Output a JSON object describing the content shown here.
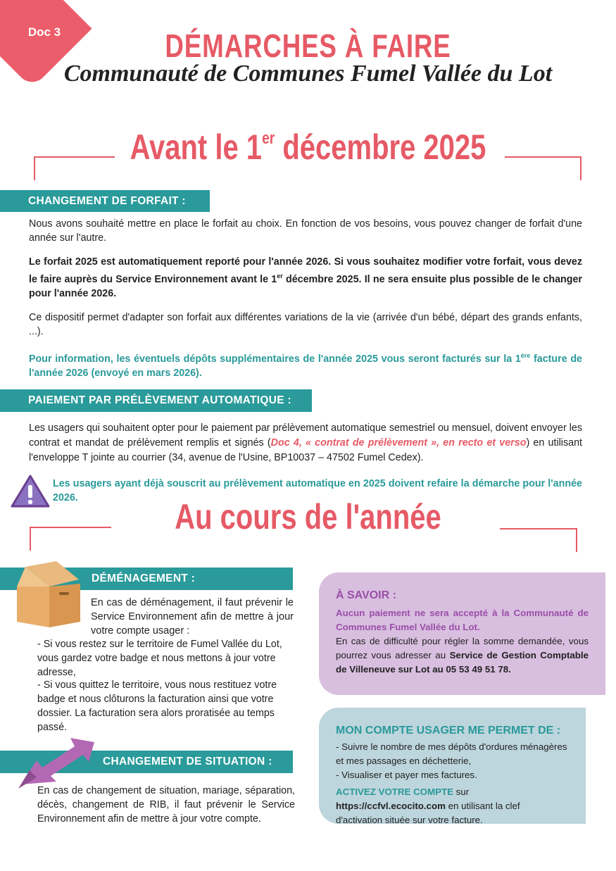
{
  "header": {
    "doc_tag": "Doc 3",
    "title": "DÉMARCHES À FAIRE",
    "subtitle": "Communauté de Communes Fumel Vallée du Lot"
  },
  "section1": {
    "heading_pre": "Avant le 1",
    "heading_sup": "er",
    "heading_post": " décembre 2025"
  },
  "forfait": {
    "label": "CHANGEMENT DE FORFAIT :",
    "p1": "Nous avons souhaité mettre en place le forfait au choix. En fonction de vos besoins, vous pouvez changer de forfait d'une année sur l'autre.",
    "p2a": "Le forfait 2025 est automatiquement reporté pour l'année 2026. Si vous souhaitez modifier votre forfait, vous devez le faire auprès du Service Environnement avant le 1",
    "p2sup": "er",
    "p2b": " décembre 2025. Il ne sera ensuite plus possible de le changer pour l'année 2026.",
    "p3": "Ce dispositif permet d'adapter son forfait aux différentes variations de la vie (arrivée d'un bébé, départ des grands enfants, ...).",
    "p4a": "Pour information, les éventuels dépôts supplémentaires de l'année 2025 vous seront facturés sur la 1",
    "p4sup": "ère",
    "p4b": " facture de l'année 2026 (envoyé en mars 2026)."
  },
  "prelevement": {
    "label": "PAIEMENT PAR PRÉLÈVEMENT AUTOMATIQUE :",
    "p1a": "Les usagers qui souhaitent opter pour le paiement par prélèvement automatique semestriel ou mensuel, doivent envoyer les contrat et mandat de prélèvement remplis et signés (",
    "p1link": "Doc 4, « contrat de prélèvement », en recto et verso",
    "p1b": ") en utilisant l'enveloppe T jointe au courrier (34, avenue de l'Usine, BP10037 – 47502 Fumel Cedex).",
    "warning": "Les usagers ayant déjà souscrit au prélèvement automatique en 2025 doivent refaire la démarche pour l'année 2026."
  },
  "section2": {
    "heading": "Au cours de l'année"
  },
  "demenagement": {
    "label": "DÉMÉNAGEMENT :",
    "intro": "En cas de déménagement, il faut prévenir le Service Environnement afin de mettre à jour votre compte usager :",
    "item1": "- Si vous restez sur le territoire de Fumel Vallée du Lot, vous gardez votre badge et nous mettons à jour votre adresse,",
    "item2": "- Si vous quittez le territoire, vous nous restituez votre badge et nous clôturons la facturation ainsi que votre dossier. La facturation sera alors proratisée au temps passé."
  },
  "situation": {
    "label": "CHANGEMENT DE SITUATION :",
    "text_bold": "En cas de changement de situation",
    "text": ", mariage, séparation, décès, changement de RIB, il faut prévenir le Service Environnement afin de mettre à jour votre compte."
  },
  "savoir": {
    "title": "À SAVOIR :",
    "highlight": "Aucun paiement ne sera accepté à la Communauté de Communes Fumel Vallée du Lot.",
    "text": "En cas de difficulté pour régler la somme demandée, vous pourrez vous adresser au ",
    "text_bold": "Service de Gestion Comptable de Villeneuve sur Lot  au 05 53 49 51 78."
  },
  "compte": {
    "title": "MON COMPTE USAGER ME PERMET DE :",
    "item1": "- Suivre le nombre de mes dépôts d'ordures ménagères et mes passages en déchetterie,",
    "item2": "- Visualiser et payer mes factures.",
    "cta": "ACTIVEZ VOTRE COMPTE",
    "cta_mid": " sur ",
    "url": "https://ccfvl.ecocito.com",
    "cta_end": " en utilisant la clef d'activation située sur votre facture."
  },
  "colors": {
    "accent_red": "#e65a66",
    "teal": "#2a9a9a",
    "purple_box": "#d8bedf",
    "blue_box": "#bdd5dc"
  }
}
